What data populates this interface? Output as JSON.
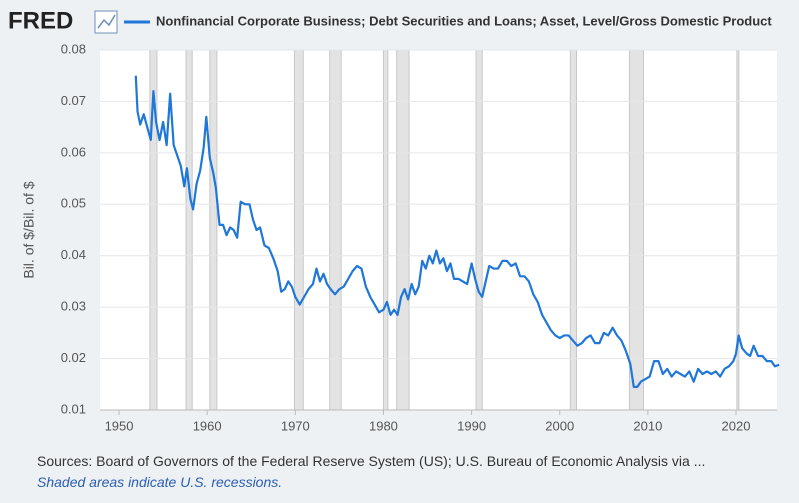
{
  "chart_data": {
    "type": "line",
    "brand": "FRED",
    "ylabel": "Bil. of $/Bil. of $",
    "source": "Sources: Board of Governors of the Federal Reserve System (US); U.S. Bureau of Economic Analysis via ...",
    "note": "Shaded areas indicate U.S. recessions.",
    "xlim": [
      1947.84,
      2024.65
    ],
    "xticks": [
      1950,
      1960,
      1970,
      1980,
      1990,
      2000,
      2010,
      2020
    ],
    "ylim": [
      0.01,
      0.08
    ],
    "yticks": [
      0.01,
      0.02,
      0.03,
      0.04,
      0.05,
      0.06,
      0.07,
      0.08
    ],
    "grid": true,
    "recessions": [
      [
        1953.5,
        1954.3
      ],
      [
        1957.6,
        1958.3
      ],
      [
        1960.3,
        1961.1
      ],
      [
        1969.9,
        1970.9
      ],
      [
        1973.9,
        1975.2
      ],
      [
        1980.0,
        1980.5
      ],
      [
        1981.5,
        1982.9
      ],
      [
        1990.5,
        1991.2
      ],
      [
        2001.2,
        2001.9
      ],
      [
        2007.9,
        2009.5
      ],
      [
        2020.1,
        2020.3
      ]
    ],
    "series": [
      {
        "name": "Nonfinancial Corporate Business; Debt Securities and Loans; Asset, Level/Gross Domestic Product",
        "color": "#1f77d8",
        "x": [
          1951.9,
          1952.1,
          1952.4,
          1952.8,
          1953.2,
          1953.6,
          1953.9,
          1954.2,
          1954.6,
          1955.0,
          1955.4,
          1955.8,
          1956.2,
          1956.6,
          1957.0,
          1957.4,
          1957.7,
          1958.1,
          1958.4,
          1958.8,
          1959.2,
          1959.6,
          1959.9,
          1960.3,
          1960.7,
          1961.0,
          1961.4,
          1961.8,
          1962.2,
          1962.6,
          1963.0,
          1963.4,
          1963.8,
          1964.3,
          1964.8,
          1965.2,
          1965.6,
          1966.0,
          1966.5,
          1967.0,
          1967.5,
          1968.0,
          1968.4,
          1968.8,
          1969.2,
          1969.6,
          1970.0,
          1970.5,
          1971.0,
          1971.5,
          1972.0,
          1972.4,
          1972.8,
          1973.2,
          1973.6,
          1974.0,
          1974.5,
          1975.0,
          1975.5,
          1976.0,
          1976.5,
          1977.0,
          1977.5,
          1978.0,
          1978.5,
          1979.0,
          1979.5,
          1980.0,
          1980.4,
          1980.8,
          1981.2,
          1981.6,
          1982.0,
          1982.4,
          1982.8,
          1983.2,
          1983.6,
          1984.0,
          1984.4,
          1984.8,
          1985.2,
          1985.6,
          1986.0,
          1986.4,
          1986.8,
          1987.2,
          1987.6,
          1988.0,
          1988.5,
          1989.0,
          1989.5,
          1990.0,
          1990.4,
          1990.8,
          1991.2,
          1991.6,
          1992.0,
          1992.5,
          1993.0,
          1993.5,
          1994.0,
          1994.5,
          1995.0,
          1995.5,
          1996.0,
          1996.5,
          1997.0,
          1997.5,
          1998.0,
          1998.5,
          1999.0,
          1999.5,
          2000.0,
          2000.5,
          2001.0,
          2001.5,
          2002.0,
          2002.5,
          2003.0,
          2003.5,
          2004.0,
          2004.5,
          2005.0,
          2005.5,
          2006.0,
          2006.5,
          2007.0,
          2007.5,
          2008.0,
          2008.4,
          2008.8,
          2009.2,
          2009.7,
          2010.2,
          2010.7,
          2011.2,
          2011.7,
          2012.2,
          2012.7,
          2013.2,
          2013.7,
          2014.2,
          2014.7,
          2015.2,
          2015.7,
          2016.2,
          2016.7,
          2017.2,
          2017.7,
          2018.2,
          2018.7,
          2019.2,
          2019.7,
          2020.0,
          2020.3,
          2020.7,
          2021.2,
          2021.6,
          2022.0,
          2022.5,
          2023.0,
          2023.5,
          2024.0,
          2024.4,
          2024.9
        ],
        "values": [
          0.075,
          0.068,
          0.0655,
          0.0675,
          0.065,
          0.0625,
          0.072,
          0.066,
          0.0625,
          0.066,
          0.0615,
          0.0715,
          0.0615,
          0.0595,
          0.0575,
          0.0535,
          0.057,
          0.051,
          0.049,
          0.054,
          0.0565,
          0.061,
          0.067,
          0.059,
          0.056,
          0.053,
          0.046,
          0.046,
          0.044,
          0.0455,
          0.045,
          0.0435,
          0.0505,
          0.05,
          0.05,
          0.047,
          0.045,
          0.0455,
          0.042,
          0.0415,
          0.0395,
          0.037,
          0.033,
          0.0335,
          0.035,
          0.034,
          0.032,
          0.0305,
          0.032,
          0.0335,
          0.0345,
          0.0375,
          0.035,
          0.0365,
          0.0345,
          0.0335,
          0.0325,
          0.0335,
          0.034,
          0.0355,
          0.037,
          0.038,
          0.0375,
          0.034,
          0.032,
          0.0305,
          0.029,
          0.0295,
          0.031,
          0.0285,
          0.0295,
          0.0285,
          0.032,
          0.0335,
          0.0315,
          0.0345,
          0.0325,
          0.034,
          0.039,
          0.0375,
          0.04,
          0.0385,
          0.041,
          0.0385,
          0.0395,
          0.037,
          0.0385,
          0.0355,
          0.0355,
          0.035,
          0.0345,
          0.0385,
          0.0355,
          0.033,
          0.032,
          0.035,
          0.038,
          0.0375,
          0.0375,
          0.039,
          0.039,
          0.038,
          0.0385,
          0.036,
          0.036,
          0.035,
          0.0325,
          0.031,
          0.0285,
          0.027,
          0.0255,
          0.0245,
          0.024,
          0.0245,
          0.0245,
          0.0235,
          0.0225,
          0.023,
          0.024,
          0.0245,
          0.023,
          0.023,
          0.025,
          0.0245,
          0.026,
          0.0245,
          0.0235,
          0.0215,
          0.019,
          0.0145,
          0.0145,
          0.0155,
          0.016,
          0.0165,
          0.0195,
          0.0195,
          0.017,
          0.018,
          0.0165,
          0.0175,
          0.017,
          0.0165,
          0.0175,
          0.0155,
          0.018,
          0.017,
          0.0175,
          0.017,
          0.0175,
          0.0165,
          0.018,
          0.0185,
          0.0195,
          0.021,
          0.0245,
          0.022,
          0.021,
          0.0205,
          0.0225,
          0.0205,
          0.0205,
          0.0195,
          0.0195,
          0.0185,
          0.0188
        ]
      }
    ]
  }
}
